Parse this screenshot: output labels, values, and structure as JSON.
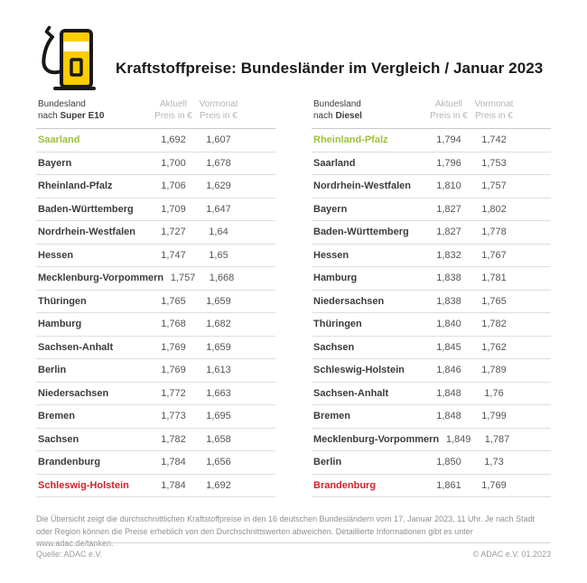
{
  "colors": {
    "accent_green": "#9dc13c",
    "accent_red": "#d2232a",
    "brand_yellow": "#ffcc00"
  },
  "header": {
    "title": "Kraftstoffpreise: Bundesländer im Vergleich / Januar 2023",
    "icon": "fuel-pump-icon"
  },
  "tables": [
    {
      "name_header_line1": "Bundesland",
      "name_header_prefix": "nach ",
      "name_header_fuel": "Super E10",
      "col_current_line1": "Aktuell",
      "col_current_line2": "Preis in €",
      "col_previous_line1": "Vormonat",
      "col_previous_line2": "Preis in €",
      "rows": [
        {
          "state": "Saarland",
          "current": "1,692",
          "previous": "1,607",
          "highlight": "green"
        },
        {
          "state": "Bayern",
          "current": "1,700",
          "previous": "1,678",
          "highlight": ""
        },
        {
          "state": "Rheinland-Pfalz",
          "current": "1,706",
          "previous": "1,629",
          "highlight": ""
        },
        {
          "state": "Baden-Württemberg",
          "current": "1,709",
          "previous": "1,647",
          "highlight": ""
        },
        {
          "state": "Nordrhein-Westfalen",
          "current": "1,727",
          "previous": "1,64",
          "highlight": ""
        },
        {
          "state": "Hessen",
          "current": "1,747",
          "previous": "1,65",
          "highlight": ""
        },
        {
          "state": "Mecklenburg-Vorpommern",
          "current": "1,757",
          "previous": "1,668",
          "highlight": ""
        },
        {
          "state": "Thüringen",
          "current": "1,765",
          "previous": "1,659",
          "highlight": ""
        },
        {
          "state": "Hamburg",
          "current": "1,768",
          "previous": "1,682",
          "highlight": ""
        },
        {
          "state": "Sachsen-Anhalt",
          "current": "1,769",
          "previous": "1,659",
          "highlight": ""
        },
        {
          "state": "Berlin",
          "current": "1,769",
          "previous": "1,613",
          "highlight": ""
        },
        {
          "state": "Niedersachsen",
          "current": "1,772",
          "previous": "1,663",
          "highlight": ""
        },
        {
          "state": "Bremen",
          "current": "1,773",
          "previous": "1,695",
          "highlight": ""
        },
        {
          "state": "Sachsen",
          "current": "1,782",
          "previous": "1,658",
          "highlight": ""
        },
        {
          "state": "Brandenburg",
          "current": "1,784",
          "previous": "1,656",
          "highlight": ""
        },
        {
          "state": "Schleswig-Holstein",
          "current": "1,784",
          "previous": "1,692",
          "highlight": "red"
        }
      ]
    },
    {
      "name_header_line1": "Bundesland",
      "name_header_prefix": "nach ",
      "name_header_fuel": "Diesel",
      "col_current_line1": "Aktuell",
      "col_current_line2": "Preis in €",
      "col_previous_line1": "Vormonat",
      "col_previous_line2": "Preis in €",
      "rows": [
        {
          "state": "Rheinland-Pfalz",
          "current": "1,794",
          "previous": "1,742",
          "highlight": "green"
        },
        {
          "state": "Saarland",
          "current": "1,796",
          "previous": "1,753",
          "highlight": ""
        },
        {
          "state": "Nordrhein-Westfalen",
          "current": "1,810",
          "previous": "1,757",
          "highlight": ""
        },
        {
          "state": "Bayern",
          "current": "1,827",
          "previous": "1,802",
          "highlight": ""
        },
        {
          "state": "Baden-Württemberg",
          "current": "1,827",
          "previous": "1,778",
          "highlight": ""
        },
        {
          "state": "Hessen",
          "current": "1,832",
          "previous": "1,767",
          "highlight": ""
        },
        {
          "state": "Hamburg",
          "current": "1,838",
          "previous": "1,781",
          "highlight": ""
        },
        {
          "state": "Niedersachsen",
          "current": "1,838",
          "previous": "1,765",
          "highlight": ""
        },
        {
          "state": "Thüringen",
          "current": "1,840",
          "previous": "1,782",
          "highlight": ""
        },
        {
          "state": "Sachsen",
          "current": "1,845",
          "previous": "1,762",
          "highlight": ""
        },
        {
          "state": "Schleswig-Holstein",
          "current": "1,846",
          "previous": "1,789",
          "highlight": ""
        },
        {
          "state": "Sachsen-Anhalt",
          "current": "1,848",
          "previous": "1,76",
          "highlight": ""
        },
        {
          "state": "Bremen",
          "current": "1,848",
          "previous": "1,799",
          "highlight": ""
        },
        {
          "state": "Mecklenburg-Vorpommern",
          "current": "1,849",
          "previous": "1,787",
          "highlight": ""
        },
        {
          "state": "Berlin",
          "current": "1,850",
          "previous": "1,73",
          "highlight": ""
        },
        {
          "state": "Brandenburg",
          "current": "1,861",
          "previous": "1,769",
          "highlight": "red"
        }
      ]
    }
  ],
  "footnote": "Die Übersicht zeigt die durchschnittlichen Kraftstoffpreise in den 16 deutschen Bundesländern vom 17. Januar 2023, 11 Uhr. Je nach Stadt oder Region können die Preise erheblich von den Durchschnittswerten abweichen. Detaillierte Informationen gibt es unter www.adac.de/tanken.",
  "footer": {
    "source": "Quelle: ADAC e.V.",
    "copyright": "© ADAC e.V. 01.2023"
  },
  "chart_data": [
    {
      "type": "table",
      "title": "Bundesland nach Super E10",
      "columns": [
        "Bundesland",
        "Aktuell Preis in €",
        "Vormonat Preis in €"
      ],
      "rows": [
        [
          "Saarland",
          1.692,
          1.607
        ],
        [
          "Bayern",
          1.7,
          1.678
        ],
        [
          "Rheinland-Pfalz",
          1.706,
          1.629
        ],
        [
          "Baden-Württemberg",
          1.709,
          1.647
        ],
        [
          "Nordrhein-Westfalen",
          1.727,
          1.64
        ],
        [
          "Hessen",
          1.747,
          1.65
        ],
        [
          "Mecklenburg-Vorpommern",
          1.757,
          1.668
        ],
        [
          "Thüringen",
          1.765,
          1.659
        ],
        [
          "Hamburg",
          1.768,
          1.682
        ],
        [
          "Sachsen-Anhalt",
          1.769,
          1.659
        ],
        [
          "Berlin",
          1.769,
          1.613
        ],
        [
          "Niedersachsen",
          1.772,
          1.663
        ],
        [
          "Bremen",
          1.773,
          1.695
        ],
        [
          "Sachsen",
          1.782,
          1.658
        ],
        [
          "Brandenburg",
          1.784,
          1.656
        ],
        [
          "Schleswig-Holstein",
          1.784,
          1.692
        ]
      ],
      "highlights": {
        "cheapest": "Saarland",
        "most_expensive": "Schleswig-Holstein"
      }
    },
    {
      "type": "table",
      "title": "Bundesland nach Diesel",
      "columns": [
        "Bundesland",
        "Aktuell Preis in €",
        "Vormonat Preis in €"
      ],
      "rows": [
        [
          "Rheinland-Pfalz",
          1.794,
          1.742
        ],
        [
          "Saarland",
          1.796,
          1.753
        ],
        [
          "Nordrhein-Westfalen",
          1.81,
          1.757
        ],
        [
          "Bayern",
          1.827,
          1.802
        ],
        [
          "Baden-Württemberg",
          1.827,
          1.778
        ],
        [
          "Hessen",
          1.832,
          1.767
        ],
        [
          "Hamburg",
          1.838,
          1.781
        ],
        [
          "Niedersachsen",
          1.838,
          1.765
        ],
        [
          "Thüringen",
          1.84,
          1.782
        ],
        [
          "Sachsen",
          1.845,
          1.762
        ],
        [
          "Schleswig-Holstein",
          1.846,
          1.789
        ],
        [
          "Sachsen-Anhalt",
          1.848,
          1.76
        ],
        [
          "Bremen",
          1.848,
          1.799
        ],
        [
          "Mecklenburg-Vorpommern",
          1.849,
          1.787
        ],
        [
          "Berlin",
          1.85,
          1.73
        ],
        [
          "Brandenburg",
          1.861,
          1.769
        ]
      ],
      "highlights": {
        "cheapest": "Rheinland-Pfalz",
        "most_expensive": "Brandenburg"
      }
    }
  ]
}
